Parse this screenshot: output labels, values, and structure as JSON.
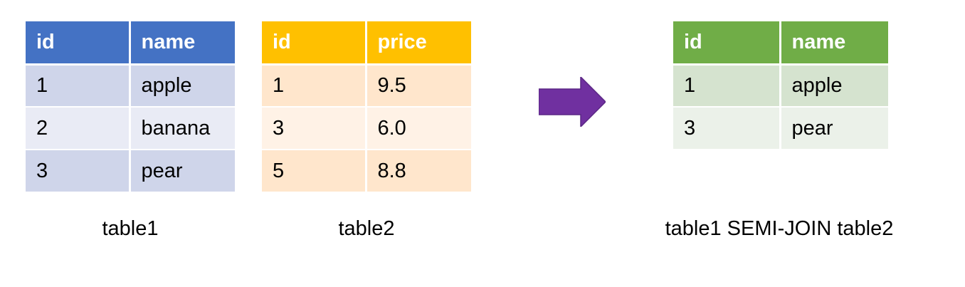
{
  "table1": {
    "caption": "table1",
    "headers": [
      "id",
      "name"
    ],
    "rows": [
      [
        "1",
        "apple"
      ],
      [
        "2",
        "banana"
      ],
      [
        "3",
        "pear"
      ]
    ],
    "header_color": "#4472c4"
  },
  "table2": {
    "caption": "table2",
    "headers": [
      "id",
      "price"
    ],
    "rows": [
      [
        "1",
        "9.5"
      ],
      [
        "3",
        "6.0"
      ],
      [
        "5",
        "8.8"
      ]
    ],
    "header_color": "#ffc000"
  },
  "result": {
    "caption": "table1 SEMI-JOIN table2",
    "headers": [
      "id",
      "name"
    ],
    "rows": [
      [
        "1",
        "apple"
      ],
      [
        "3",
        "pear"
      ]
    ],
    "header_color": "#70ad47"
  },
  "arrow": {
    "icon": "right-arrow-icon",
    "color": "#7030a0"
  }
}
